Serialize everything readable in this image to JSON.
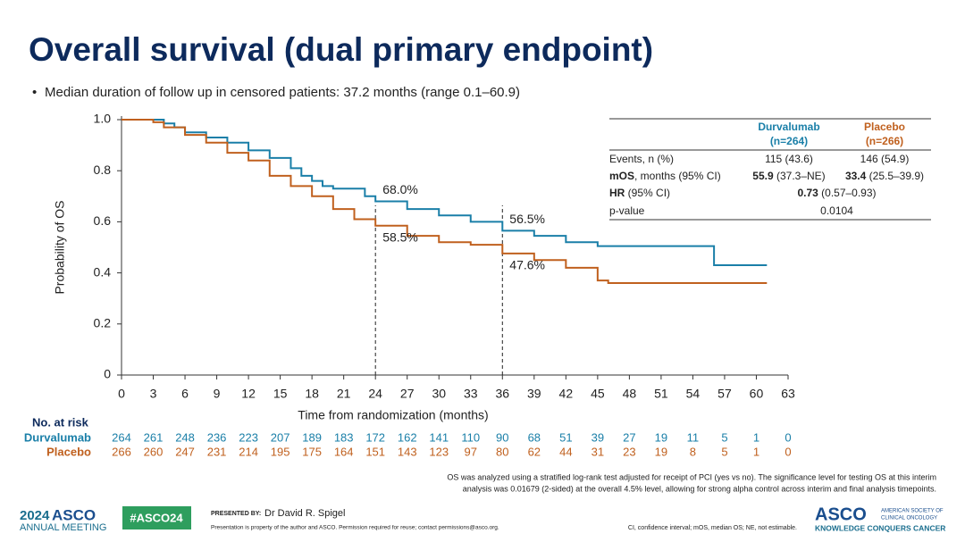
{
  "header": {
    "title": "Overall survival (dual primary endpoint)",
    "bullet": "Median duration of follow up in censored patients: 37.2 months (range 0.1–60.9)"
  },
  "chart_data": {
    "type": "line",
    "step": true,
    "xlabel": "Time from randomization (months)",
    "ylabel": "Probability of OS",
    "xlim": [
      0,
      63
    ],
    "ylim": [
      0,
      1
    ],
    "xticks": [
      0,
      3,
      6,
      9,
      12,
      15,
      18,
      21,
      24,
      27,
      30,
      33,
      36,
      39,
      42,
      45,
      48,
      51,
      54,
      57,
      60,
      63
    ],
    "yticks": [
      0,
      0.2,
      0.4,
      0.6,
      0.8,
      {
        "value": 1,
        "label": "1.0"
      }
    ],
    "series": [
      {
        "name": "Durvalumab",
        "color": "#1a7fa8",
        "x": [
          0,
          2,
          4,
          5,
          6,
          8,
          10,
          12,
          14,
          16,
          17,
          18,
          19,
          20,
          22,
          23,
          24,
          27,
          30,
          33,
          36,
          39,
          42,
          45,
          56,
          56,
          61
        ],
        "values": [
          1,
          1,
          0.985,
          0.97,
          0.95,
          0.93,
          0.91,
          0.88,
          0.85,
          0.81,
          0.78,
          0.76,
          0.74,
          0.73,
          0.73,
          0.7,
          0.68,
          0.65,
          0.625,
          0.6,
          0.565,
          0.545,
          0.52,
          0.505,
          0.505,
          0.43,
          0.43
        ]
      },
      {
        "name": "Placebo",
        "color": "#c0601e",
        "x": [
          0,
          2,
          3,
          4,
          6,
          8,
          10,
          12,
          14,
          16,
          18,
          20,
          22,
          24,
          27,
          30,
          33,
          36,
          39,
          42,
          45,
          46,
          61
        ],
        "values": [
          1,
          1,
          0.99,
          0.97,
          0.94,
          0.91,
          0.87,
          0.84,
          0.78,
          0.74,
          0.7,
          0.65,
          0.61,
          0.585,
          0.545,
          0.52,
          0.51,
          0.476,
          0.45,
          0.42,
          0.37,
          0.36,
          0.36
        ]
      }
    ],
    "reference_lines": [
      24,
      36
    ],
    "annotations": [
      {
        "x": 24,
        "value": 0.68,
        "label": "68.0%",
        "position": "above"
      },
      {
        "x": 24,
        "value": 0.585,
        "label": "58.5%",
        "position": "below"
      },
      {
        "x": 36,
        "value": 0.565,
        "label": "56.5%",
        "position": "above"
      },
      {
        "x": 36,
        "value": 0.476,
        "label": "47.6%",
        "position": "below"
      }
    ],
    "risk_table": {
      "title": "No. at risk",
      "rows": [
        [
          264,
          261,
          248,
          236,
          223,
          207,
          189,
          183,
          172,
          162,
          141,
          110,
          90,
          68,
          51,
          39,
          27,
          19,
          11,
          5,
          1,
          0
        ],
        [
          266,
          260,
          247,
          231,
          214,
          195,
          175,
          164,
          151,
          143,
          123,
          97,
          80,
          62,
          44,
          31,
          23,
          19,
          8,
          5,
          1,
          0
        ]
      ]
    },
    "stats_table": {
      "headers": [
        [
          "Durvalumab",
          "(n=264)"
        ],
        [
          "Placebo",
          "(n=266)"
        ]
      ],
      "rows": [
        [
          {
            "t": "Events, n (%)"
          },
          {
            "t": "115 (43.6)"
          },
          {
            "t": "146 (54.9)"
          }
        ],
        [
          {
            "b": "mOS",
            "t": ", months (95% CI)"
          },
          {
            "b": "55.9",
            "t": " (37.3–NE)"
          },
          {
            "b": "33.4",
            "t": " (25.5–39.9)"
          }
        ],
        [
          {
            "b": "HR",
            "t": " (95% CI)"
          },
          {
            "b": "0.73",
            "t": " (0.57–0.93)"
          }
        ],
        [
          {
            "t": "p-value"
          },
          {
            "t": "0.0104"
          }
        ]
      ]
    }
  },
  "footer": {
    "note1": "OS was analyzed using a stratified log-rank test adjusted for receipt of PCI (yes vs no). The significance level for testing OS at this interim",
    "note2": "analysis was 0.01679 (2-sided) at the overall 4.5% level, allowing for strong alpha control across interim and final analysis timepoints.",
    "meeting_year": "2024",
    "meeting_org": "ASCO",
    "meeting_name": "ANNUAL MEETING",
    "hashtag": "#ASCO24",
    "presented_by": "PRESENTED BY:",
    "presenter": "Dr David R. Spigel",
    "property": "Presentation is property of the author and ASCO. Permission required for reuse; contact permissions@asco.org.",
    "abbrev": "CI, confidence interval; mOS, median OS; NE, not estimable.",
    "logo": "ASCO",
    "logo_sub1": "AMERICAN SOCIETY OF",
    "logo_sub2": "CLINICAL ONCOLOGY",
    "logo_tag": "KNOWLEDGE CONQUERS CANCER"
  }
}
